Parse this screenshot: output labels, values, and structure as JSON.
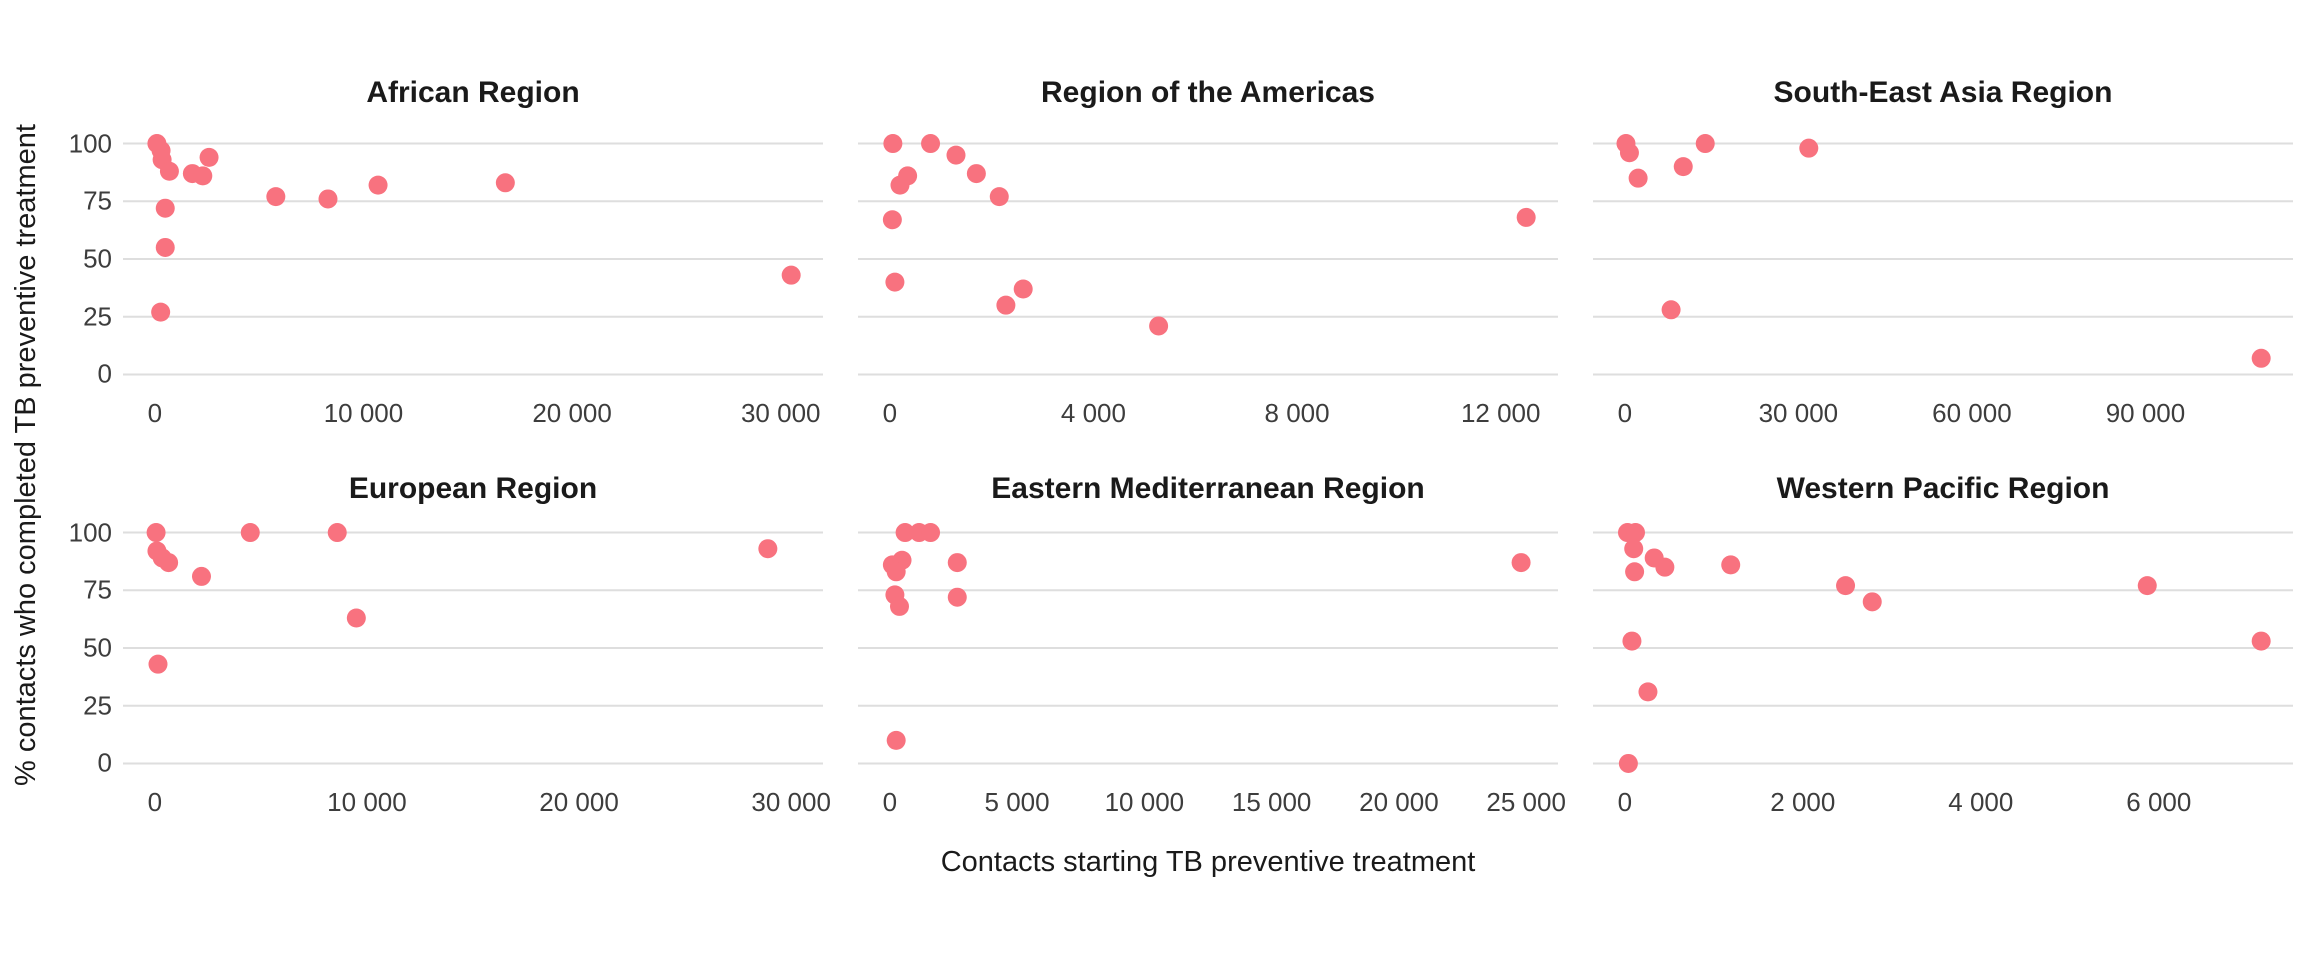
{
  "figure": {
    "y_axis_title": "% contacts who completed TB preventive treatment",
    "x_axis_title": "Contacts starting TB preventive treatment",
    "y_ticks": [
      {
        "value": 100,
        "label": "100"
      },
      {
        "value": 75,
        "label": "75"
      },
      {
        "value": 50,
        "label": "50"
      },
      {
        "value": 25,
        "label": "25"
      },
      {
        "value": 0,
        "label": "0"
      }
    ],
    "colors": {
      "point": "#F8727F",
      "gridline": "#DEDEDE",
      "title_text": "#1a1a1a",
      "tick_text": "#3d3d3d",
      "background": "#ffffff"
    }
  },
  "chart_data": [
    {
      "type": "scatter",
      "title": "African Region",
      "ylim": [
        0,
        100
      ],
      "grid": "horizontal",
      "x_ticks": [
        {
          "value": 0,
          "label": "0"
        },
        {
          "value": 10000,
          "label": "10 000"
        },
        {
          "value": 20000,
          "label": "20 000"
        },
        {
          "value": 30000,
          "label": "30 000"
        }
      ],
      "points": [
        {
          "x": 100,
          "y": 100
        },
        {
          "x": 300,
          "y": 97
        },
        {
          "x": 350,
          "y": 93
        },
        {
          "x": 700,
          "y": 88
        },
        {
          "x": 1800,
          "y": 87
        },
        {
          "x": 2300,
          "y": 86
        },
        {
          "x": 2600,
          "y": 94
        },
        {
          "x": 500,
          "y": 72
        },
        {
          "x": 500,
          "y": 55
        },
        {
          "x": 280,
          "y": 27
        },
        {
          "x": 5800,
          "y": 77
        },
        {
          "x": 8300,
          "y": 76
        },
        {
          "x": 10700,
          "y": 82
        },
        {
          "x": 16800,
          "y": 83
        },
        {
          "x": 30500,
          "y": 43
        }
      ]
    },
    {
      "type": "scatter",
      "title": "Region of the Americas",
      "ylim": [
        0,
        100
      ],
      "grid": "horizontal",
      "x_ticks": [
        {
          "value": 0,
          "label": "0"
        },
        {
          "value": 4000,
          "label": "4 000"
        },
        {
          "value": 8000,
          "label": "8 000"
        },
        {
          "value": 12000,
          "label": "12 000"
        }
      ],
      "points": [
        {
          "x": 60,
          "y": 100
        },
        {
          "x": 800,
          "y": 100
        },
        {
          "x": 1300,
          "y": 95
        },
        {
          "x": 1700,
          "y": 87
        },
        {
          "x": 350,
          "y": 86
        },
        {
          "x": 200,
          "y": 82
        },
        {
          "x": 2150,
          "y": 77
        },
        {
          "x": 50,
          "y": 67
        },
        {
          "x": 100,
          "y": 40
        },
        {
          "x": 2620,
          "y": 37
        },
        {
          "x": 2280,
          "y": 30
        },
        {
          "x": 5280,
          "y": 21
        },
        {
          "x": 12500,
          "y": 68
        }
      ]
    },
    {
      "type": "scatter",
      "title": "South-East Asia Region",
      "ylim": [
        0,
        100
      ],
      "grid": "horizontal",
      "x_ticks": [
        {
          "value": 0,
          "label": "0"
        },
        {
          "value": 30000,
          "label": "30 000"
        },
        {
          "value": 60000,
          "label": "60 000"
        },
        {
          "value": 90000,
          "label": "90 000"
        }
      ],
      "points": [
        {
          "x": 200,
          "y": 100
        },
        {
          "x": 800,
          "y": 96
        },
        {
          "x": 2300,
          "y": 85
        },
        {
          "x": 10100,
          "y": 90
        },
        {
          "x": 13900,
          "y": 100
        },
        {
          "x": 31800,
          "y": 98
        },
        {
          "x": 8000,
          "y": 28
        },
        {
          "x": 110000,
          "y": 7
        }
      ]
    },
    {
      "type": "scatter",
      "title": "European Region",
      "ylim": [
        0,
        100
      ],
      "grid": "horizontal",
      "x_ticks": [
        {
          "value": 0,
          "label": "0"
        },
        {
          "value": 10000,
          "label": "10 000"
        },
        {
          "value": 20000,
          "label": "20 000"
        },
        {
          "value": 30000,
          "label": "30 000"
        }
      ],
      "points": [
        {
          "x": 60,
          "y": 100
        },
        {
          "x": 100,
          "y": 92
        },
        {
          "x": 350,
          "y": 89
        },
        {
          "x": 650,
          "y": 87
        },
        {
          "x": 2200,
          "y": 81
        },
        {
          "x": 4500,
          "y": 100
        },
        {
          "x": 8600,
          "y": 100
        },
        {
          "x": 9500,
          "y": 63
        },
        {
          "x": 150,
          "y": 43
        },
        {
          "x": 28900,
          "y": 93
        }
      ]
    },
    {
      "type": "scatter",
      "title": "Eastern Mediterranean Region",
      "ylim": [
        0,
        100
      ],
      "grid": "horizontal",
      "x_ticks": [
        {
          "value": 0,
          "label": "0"
        },
        {
          "value": 5000,
          "label": "5 000"
        },
        {
          "value": 10000,
          "label": "10 000"
        },
        {
          "value": 15000,
          "label": "15 000"
        },
        {
          "value": 20000,
          "label": "20 000"
        },
        {
          "value": 25000,
          "label": "25 000"
        }
      ],
      "points": [
        {
          "x": 600,
          "y": 100
        },
        {
          "x": 1150,
          "y": 100
        },
        {
          "x": 1600,
          "y": 100
        },
        {
          "x": 100,
          "y": 86
        },
        {
          "x": 480,
          "y": 88
        },
        {
          "x": 250,
          "y": 83
        },
        {
          "x": 2650,
          "y": 87
        },
        {
          "x": 200,
          "y": 73
        },
        {
          "x": 380,
          "y": 68
        },
        {
          "x": 2650,
          "y": 72
        },
        {
          "x": 24800,
          "y": 87
        },
        {
          "x": 250,
          "y": 10
        }
      ]
    },
    {
      "type": "scatter",
      "title": "Western Pacific Region",
      "ylim": [
        0,
        100
      ],
      "grid": "horizontal",
      "x_ticks": [
        {
          "value": 0,
          "label": "0"
        },
        {
          "value": 2000,
          "label": "2 000"
        },
        {
          "value": 4000,
          "label": "4 000"
        },
        {
          "value": 6000,
          "label": "6 000"
        }
      ],
      "points": [
        {
          "x": 30,
          "y": 100
        },
        {
          "x": 120,
          "y": 100
        },
        {
          "x": 100,
          "y": 93
        },
        {
          "x": 330,
          "y": 89
        },
        {
          "x": 450,
          "y": 85
        },
        {
          "x": 110,
          "y": 83
        },
        {
          "x": 1190,
          "y": 86
        },
        {
          "x": 2480,
          "y": 77
        },
        {
          "x": 2780,
          "y": 70
        },
        {
          "x": 5870,
          "y": 77
        },
        {
          "x": 7150,
          "y": 53
        },
        {
          "x": 80,
          "y": 53
        },
        {
          "x": 260,
          "y": 31
        },
        {
          "x": 40,
          "y": 0
        }
      ]
    }
  ]
}
